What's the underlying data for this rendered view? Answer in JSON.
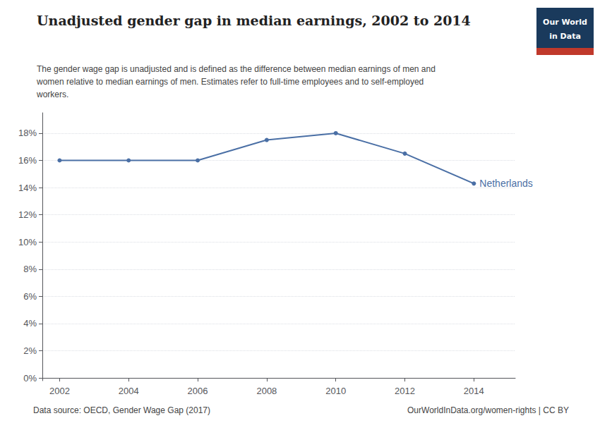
{
  "chart_data": {
    "type": "line",
    "title": "Unadjusted gender gap in median earnings, 2002 to 2014",
    "subtitle": "The gender wage gap is unadjusted and is defined as the difference between median earnings of men and\nwomen relative to median earnings of men. Estimates refer to full-time employees and to self-employed\nworkers.",
    "x": [
      2002,
      2004,
      2006,
      2008,
      2010,
      2012,
      2014
    ],
    "values": [
      0.16,
      0.16,
      0.16,
      0.175,
      0.18,
      0.165,
      0.143
    ],
    "color": "#4a6fa5",
    "marker": "circle",
    "annotations": [
      {
        "text": "Netherlands",
        "x": 2014,
        "y": 0.143,
        "color": "#4a6fa5"
      }
    ],
    "xlim": [
      2001.5,
      2015.2
    ],
    "xticks": [
      2002,
      2004,
      2006,
      2008,
      2010,
      2012,
      2014
    ],
    "ylim": [
      -0.002,
      0.195
    ],
    "yticks": [
      {
        "value": 0.0,
        "label": "0%"
      },
      {
        "value": 0.02,
        "label": "2%"
      },
      {
        "value": 0.04,
        "label": "4%"
      },
      {
        "value": 0.06,
        "label": "6%"
      },
      {
        "value": 0.08,
        "label": "8%"
      },
      {
        "value": 0.1,
        "label": "10%"
      },
      {
        "value": 0.12,
        "label": "12%"
      },
      {
        "value": 0.14,
        "label": "14%"
      },
      {
        "value": 0.16,
        "label": "16%"
      },
      {
        "value": 0.18,
        "label": "18%"
      }
    ],
    "grid": true,
    "source": "Data source: OECD, Gender Wage Gap (2017)",
    "credit": "OurWorldInData.org/women-rights | CC BY",
    "logo": {
      "lines": [
        "Our World",
        "in Data"
      ],
      "color": "#1a3a5c",
      "accent_color": "#c0392b"
    }
  }
}
